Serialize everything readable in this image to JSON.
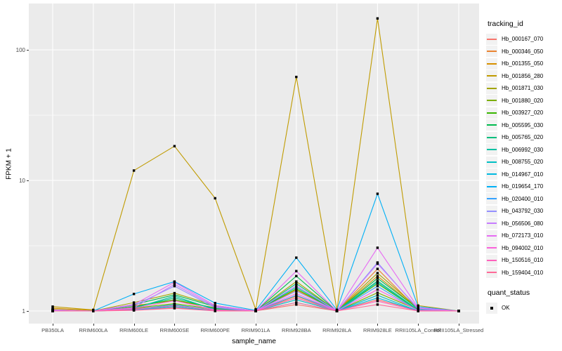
{
  "chart_data": {
    "type": "line",
    "xlabel": "sample_name",
    "ylabel": "FPKM + 1",
    "y_scale": "log10",
    "y_ticks": [
      1,
      10,
      100
    ],
    "y_tick_labels": [
      "1",
      "10",
      "100"
    ],
    "y_minor_ticks": [
      3.16,
      31.6
    ],
    "ylim": [
      0.95,
      220
    ],
    "grid": true,
    "legend_position": "right",
    "panel_bg": "#EBEBEB",
    "grid_color": "#FFFFFF",
    "point_shape": "black-square",
    "point_color": "#000000",
    "categories": [
      "PB350LA",
      "RRIM600LA",
      "RRIM600LE",
      "RRIM600SE",
      "RRIM600PE",
      "RRIM901LA",
      "RRIM928BA",
      "RRIM928LA",
      "RRIM928LE",
      "RRII105LA_Control",
      "RRII105LA_Stressed"
    ],
    "series": [
      {
        "name": "Hb_000167_070",
        "color": "#F8766D",
        "values": [
          1.0,
          1.0,
          1.02,
          1.06,
          1.01,
          1.0,
          1.12,
          1.0,
          1.22,
          1.01,
          1.0
        ]
      },
      {
        "name": "Hb_000346_050",
        "color": "#EA8331",
        "values": [
          1.01,
          1.0,
          1.04,
          1.1,
          1.02,
          1.0,
          1.3,
          1.0,
          2.1,
          1.02,
          1.0
        ]
      },
      {
        "name": "Hb_001355_050",
        "color": "#D89000",
        "values": [
          1.05,
          1.01,
          1.1,
          1.2,
          1.06,
          1.0,
          1.45,
          1.0,
          1.85,
          1.04,
          1.0
        ]
      },
      {
        "name": "Hb_001856_280",
        "color": "#C09B00",
        "values": [
          1.08,
          1.02,
          11.9,
          18.3,
          7.3,
          1.03,
          62,
          1.02,
          174,
          1.1,
          1.0
        ]
      },
      {
        "name": "Hb_001871_030",
        "color": "#A3A500",
        "values": [
          1.03,
          1.0,
          1.16,
          1.37,
          1.1,
          1.0,
          1.68,
          1.0,
          1.95,
          1.05,
          1.0
        ]
      },
      {
        "name": "Hb_001880_020",
        "color": "#7CAE00",
        "values": [
          1.0,
          1.0,
          1.05,
          1.14,
          1.03,
          1.0,
          1.26,
          1.0,
          1.38,
          1.02,
          1.0
        ]
      },
      {
        "name": "Hb_003927_020",
        "color": "#39B600",
        "values": [
          1.01,
          1.0,
          1.08,
          1.22,
          1.05,
          1.0,
          1.48,
          1.0,
          1.62,
          1.01,
          1.0
        ]
      },
      {
        "name": "Hb_005595_030",
        "color": "#00BB4E",
        "values": [
          1.02,
          1.0,
          1.12,
          1.33,
          1.08,
          1.0,
          1.85,
          1.0,
          1.78,
          1.04,
          1.0
        ]
      },
      {
        "name": "Hb_005765_020",
        "color": "#00BF7D",
        "values": [
          1.0,
          1.0,
          1.06,
          1.26,
          1.04,
          1.0,
          1.62,
          1.0,
          1.7,
          1.02,
          1.0
        ]
      },
      {
        "name": "Hb_006992_030",
        "color": "#00C1A3",
        "values": [
          1.01,
          1.0,
          1.05,
          1.3,
          1.02,
          1.0,
          1.52,
          1.0,
          1.66,
          1.01,
          1.0
        ]
      },
      {
        "name": "Hb_008755_020",
        "color": "#00BFC4",
        "values": [
          1.0,
          1.0,
          1.03,
          1.12,
          1.01,
          1.0,
          1.22,
          1.0,
          1.32,
          1.0,
          1.0
        ]
      },
      {
        "name": "Hb_014967_010",
        "color": "#00BAE0",
        "values": [
          1.0,
          1.0,
          1.02,
          1.08,
          1.0,
          1.0,
          1.16,
          1.0,
          1.26,
          1.0,
          1.0
        ]
      },
      {
        "name": "Hb_019654_170",
        "color": "#00B0F6",
        "values": [
          1.02,
          1.0,
          1.35,
          1.68,
          1.15,
          1.01,
          2.56,
          1.02,
          7.9,
          1.08,
          1.0
        ]
      },
      {
        "name": "Hb_020400_010",
        "color": "#35A2FF",
        "values": [
          1.0,
          1.0,
          1.02,
          1.1,
          1.01,
          1.0,
          1.32,
          1.0,
          1.55,
          1.0,
          1.0
        ]
      },
      {
        "name": "Hb_043792_030",
        "color": "#9590FF",
        "values": [
          1.01,
          1.0,
          1.1,
          1.55,
          1.06,
          1.0,
          1.42,
          1.0,
          2.35,
          1.03,
          1.0
        ]
      },
      {
        "name": "Hb_056506_080",
        "color": "#C77CFF",
        "values": [
          1.0,
          1.0,
          1.06,
          1.6,
          1.08,
          1.0,
          1.56,
          1.0,
          2.3,
          1.05,
          1.0
        ]
      },
      {
        "name": "Hb_072173_010",
        "color": "#E76BF3",
        "values": [
          1.02,
          1.0,
          1.12,
          1.66,
          1.1,
          1.0,
          2.02,
          1.0,
          3.05,
          1.06,
          1.0
        ]
      },
      {
        "name": "Hb_094002_010",
        "color": "#FA62DB",
        "values": [
          1.0,
          1.0,
          1.05,
          1.2,
          1.02,
          1.0,
          1.36,
          1.0,
          1.46,
          1.01,
          1.0
        ]
      },
      {
        "name": "Hb_150516_010",
        "color": "#FF62BC",
        "values": [
          1.0,
          1.0,
          1.03,
          1.1,
          1.01,
          1.0,
          1.26,
          1.0,
          1.19,
          1.0,
          1.0
        ]
      },
      {
        "name": "Hb_159404_010",
        "color": "#FF6A98",
        "values": [
          1.0,
          1.0,
          1.01,
          1.05,
          1.0,
          1.0,
          1.16,
          1.0,
          1.12,
          1.0,
          1.0
        ]
      }
    ],
    "legend": {
      "tracking_title": "tracking_id",
      "quant_title": "quant_status",
      "quant_items": [
        {
          "label": "OK",
          "shape": "square",
          "color": "#000000"
        }
      ]
    }
  }
}
